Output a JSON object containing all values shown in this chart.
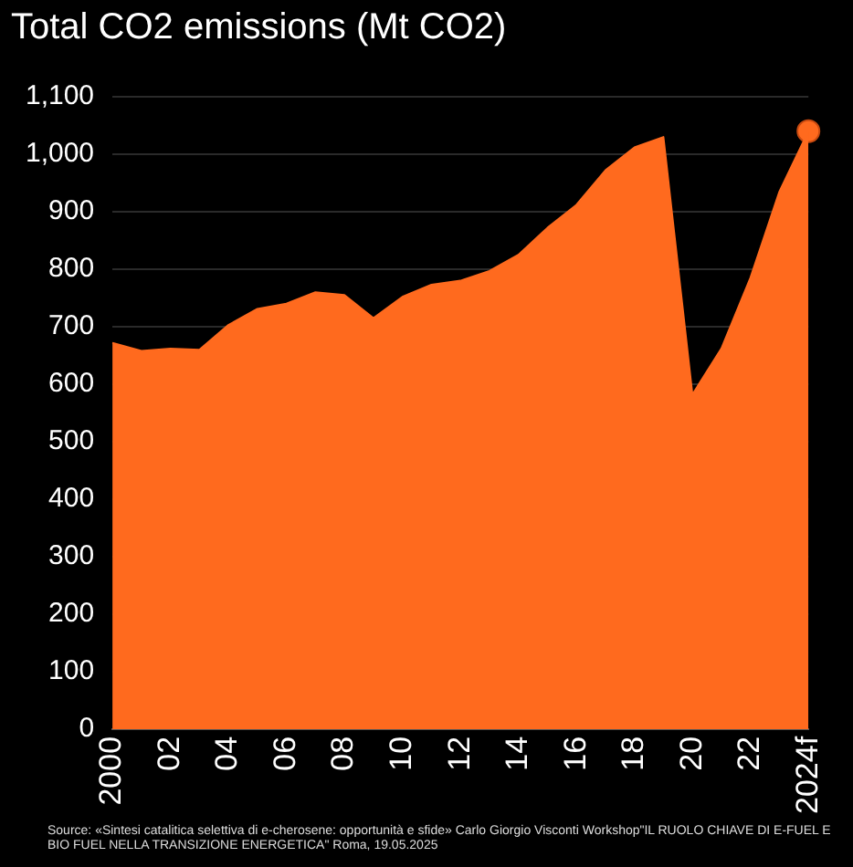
{
  "chart_data": {
    "type": "area",
    "title": "Total CO2 emissions (Mt CO2)",
    "categories": [
      "2000",
      null,
      "02",
      null,
      "04",
      null,
      "06",
      null,
      "08",
      null,
      "10",
      null,
      "12",
      null,
      "14",
      null,
      "16",
      null,
      "18",
      null,
      "20",
      null,
      "22",
      null,
      "2024f"
    ],
    "series": [
      {
        "color": "#ff6a1e",
        "values": [
          672,
          658,
          662,
          660,
          703,
          731,
          740,
          760,
          755,
          715,
          752,
          773,
          780,
          797,
          825,
          872,
          912,
          972,
          1012,
          1030,
          582,
          662,
          785,
          935,
          1040
        ]
      },
      {
        "type": "scatter",
        "marker": "circle",
        "color": "#ff6a1e",
        "x": [
          "2024f"
        ],
        "values": [
          1040
        ]
      }
    ],
    "ylim": [
      0,
      1100
    ],
    "yticks": [
      0,
      100,
      200,
      300,
      400,
      500,
      600,
      700,
      800,
      900,
      {
        "value": 1000,
        "label": "1,000"
      },
      {
        "value": 1100,
        "label": "1,100"
      }
    ],
    "grid": "y",
    "legend": false,
    "annotations": [
      "Source: «Sintesi catalitica selettiva di e-cherosene: opportunità e sfide» Carlo Giorgio Visconti  Workshop\"IL RUOLO CHIAVE DI E-FUEL E BIO FUEL NELLA TRANSIZIONE  ENERGETICA\" Roma, 19.05.2025"
    ]
  }
}
